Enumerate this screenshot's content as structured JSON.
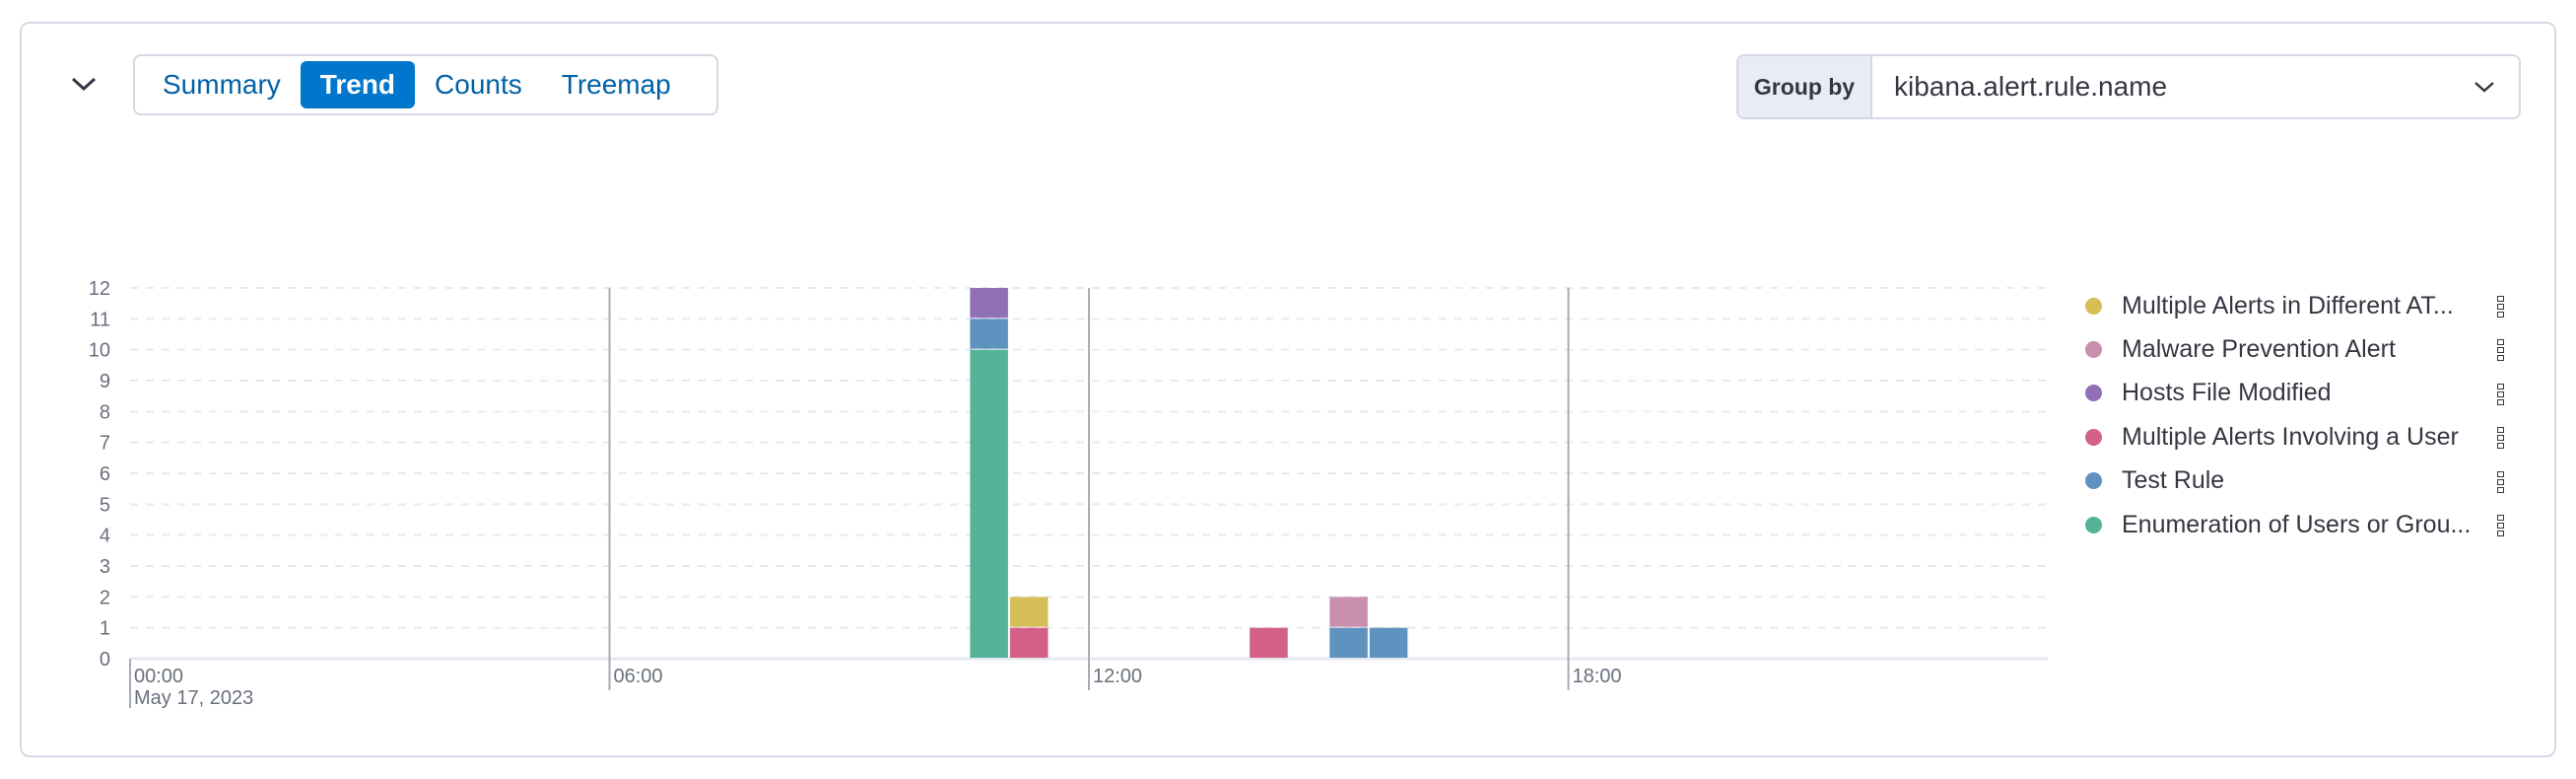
{
  "tabs": [
    {
      "label": "Summary",
      "active": false
    },
    {
      "label": "Trend",
      "active": true
    },
    {
      "label": "Counts",
      "active": false
    },
    {
      "label": "Treemap",
      "active": false
    }
  ],
  "group_by": {
    "label": "Group by",
    "value": "kibana.alert.rule.name"
  },
  "legend": [
    {
      "label": "Multiple Alerts in Different AT...",
      "color": "#D6BF57"
    },
    {
      "label": "Malware Prevention Alert",
      "color": "#CA8EAE"
    },
    {
      "label": "Hosts File Modified",
      "color": "#9170B8"
    },
    {
      "label": "Multiple Alerts Involving a User",
      "color": "#D36086"
    },
    {
      "label": "Test Rule",
      "color": "#6092C0"
    },
    {
      "label": "Enumeration of Users or Grou...",
      "color": "#54B399"
    }
  ],
  "chart_data": {
    "type": "bar",
    "stacked": true,
    "interval_minutes": 30,
    "x_range": [
      "00:00",
      "24:00"
    ],
    "ylim": [
      0,
      12
    ],
    "y_ticks": [
      "0",
      "1",
      "2",
      "3",
      "4",
      "5",
      "6",
      "7",
      "8",
      "9",
      "10",
      "11",
      "12"
    ],
    "x_ticks": [
      {
        "label": "00:00",
        "sublabel": "May 17, 2023",
        "hour": 0
      },
      {
        "label": "06:00",
        "hour": 6
      },
      {
        "label": "12:00",
        "hour": 12
      },
      {
        "label": "18:00",
        "hour": 18
      }
    ],
    "grid": "horizontal dashed",
    "legend_position": "right",
    "categories": [
      "10:30",
      "11:00",
      "14:00",
      "15:00",
      "15:30"
    ],
    "series": [
      {
        "name": "Enumeration of Users or Grou...",
        "color": "#54B399",
        "values": [
          10,
          0,
          0,
          0,
          0
        ]
      },
      {
        "name": "Test Rule",
        "color": "#6092C0",
        "values": [
          1,
          0,
          0,
          1,
          1
        ]
      },
      {
        "name": "Multiple Alerts Involving a User",
        "color": "#D36086",
        "values": [
          0,
          1,
          1,
          0,
          0
        ]
      },
      {
        "name": "Hosts File Modified",
        "color": "#9170B8",
        "values": [
          1,
          0,
          0,
          0,
          0
        ]
      },
      {
        "name": "Malware Prevention Alert",
        "color": "#CA8EAE",
        "values": [
          0,
          0,
          0,
          1,
          0
        ]
      },
      {
        "name": "Multiple Alerts in Different AT...",
        "color": "#D6BF57",
        "values": [
          0,
          1,
          0,
          0,
          0
        ]
      }
    ]
  }
}
